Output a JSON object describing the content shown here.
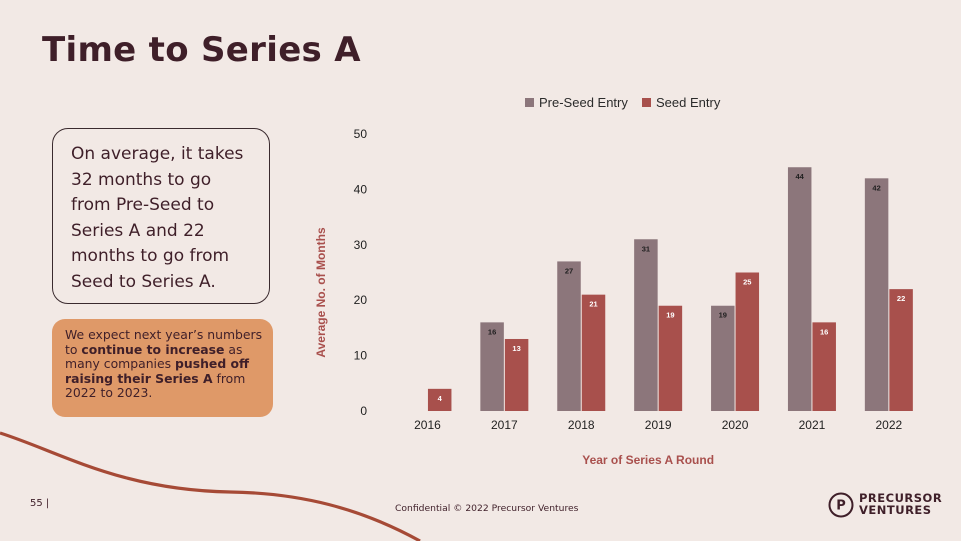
{
  "slide": {
    "title": "Time to Series A",
    "callout": "On average, it takes 32 months to go from Pre-Seed to Series A and 22 months to go from Seed to Series A.",
    "note": {
      "p1": "We expect next year’s numbers to ",
      "b1": "continue to increase",
      "p2": " as many companies ",
      "b2": "pushed off raising their Series A",
      "p3": " from 2022 to 2023."
    },
    "page_number": "55 |",
    "footer": "Confidential © 2022 Precursor Ventures",
    "logo": {
      "line1": "PRECURSOR",
      "line2": "VENTURES",
      "mark_letter": "P"
    }
  },
  "colors": {
    "background": "#f2e9e5",
    "pre_seed": "#8c767b",
    "seed": "#a8504c",
    "accent_orange": "#df9968",
    "curve": "#a64a36"
  },
  "chart_data": {
    "type": "bar",
    "categories": [
      "2016",
      "2017",
      "2018",
      "2019",
      "2020",
      "2021",
      "2022"
    ],
    "series": [
      {
        "name": "Pre-Seed Entry",
        "values": [
          null,
          16,
          27,
          31,
          19,
          44,
          42
        ]
      },
      {
        "name": "Seed Entry",
        "values": [
          4,
          13,
          21,
          19,
          25,
          16,
          22
        ]
      }
    ],
    "yticks": [
      "0",
      "10",
      "20",
      "30",
      "40",
      "50"
    ],
    "ylim": [
      0,
      50
    ],
    "xlabel": "Year of Series A Round",
    "ylabel": "Average No. of Months",
    "legend_position": "top-center",
    "grid": false
  }
}
